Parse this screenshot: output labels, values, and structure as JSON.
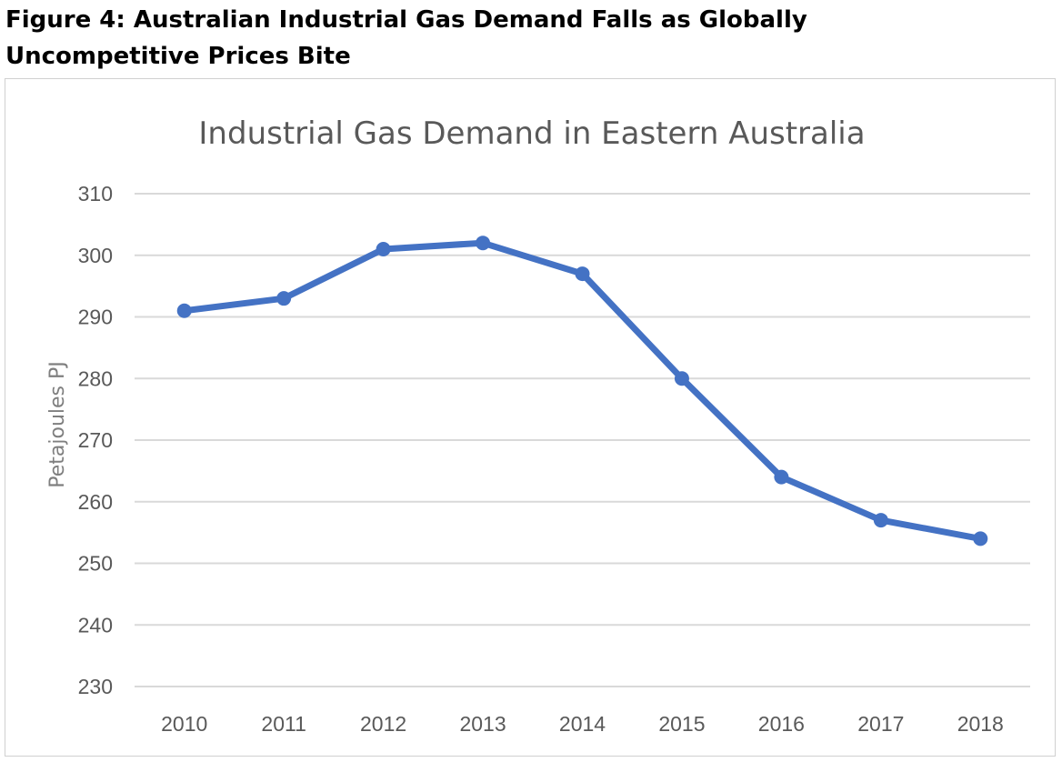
{
  "figure": {
    "title_line1": "Figure 4: Australian Industrial Gas Demand Falls as Globally",
    "title_line2": "Uncompetitive Prices Bite"
  },
  "chart_data": {
    "type": "line",
    "title": "Industrial Gas Demand in Eastern Australia",
    "xlabel": "",
    "ylabel": "Petajoules PJ",
    "categories": [
      "2010",
      "2011",
      "2012",
      "2013",
      "2014",
      "2015",
      "2016",
      "2017",
      "2018"
    ],
    "series": [
      {
        "name": "Industrial Gas Demand",
        "values": [
          291,
          293,
          301,
          302,
          297,
          280,
          264,
          257,
          254
        ],
        "color": "#4472c4"
      }
    ],
    "ylim": [
      230,
      310
    ],
    "yticks": [
      230,
      240,
      250,
      260,
      270,
      280,
      290,
      300,
      310
    ],
    "grid": true,
    "legend": "none",
    "gridColor": "#d9d9d9",
    "textColor": "#595959"
  }
}
